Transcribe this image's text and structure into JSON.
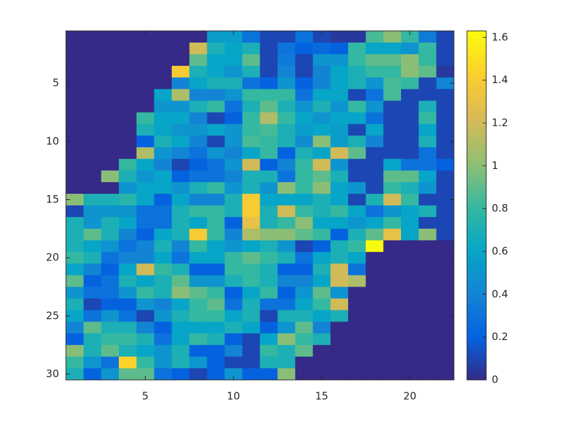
{
  "chart_data": {
    "type": "heatmap",
    "x": [
      1,
      2,
      3,
      4,
      5,
      6,
      7,
      8,
      9,
      10,
      11,
      12,
      13,
      14,
      15,
      16,
      17,
      18,
      19,
      20,
      21,
      22
    ],
    "y": [
      1,
      2,
      3,
      4,
      5,
      6,
      7,
      8,
      9,
      10,
      11,
      12,
      13,
      14,
      15,
      16,
      17,
      18,
      19,
      20,
      21,
      22,
      23,
      24,
      25,
      26,
      27,
      28,
      29,
      30
    ],
    "xlim": [
      0.5,
      22.5
    ],
    "ylim": [
      0.5,
      30.5
    ],
    "y_direction": "reverse",
    "xticks": [
      5,
      10,
      15,
      20
    ],
    "yticks": [
      5,
      10,
      15,
      20,
      25,
      30
    ],
    "clim": [
      0,
      1.63
    ],
    "cticks": [
      0,
      0.2,
      0.4,
      0.6,
      0.8,
      1,
      1.2,
      1.4,
      1.6
    ],
    "colormap": [
      "#352a87",
      "#0363e1",
      "#1485d4",
      "#06a7c6",
      "#38b99e",
      "#92bf73",
      "#d9ba56",
      "#fcce2e",
      "#f9fb0e"
    ],
    "values": [
      [
        0,
        0,
        0,
        0,
        0,
        0,
        0,
        0,
        0.55,
        0.55,
        0.3,
        0.1,
        0.1,
        0.3,
        0.1,
        0.05,
        0.05,
        0.85,
        1.0,
        0.8,
        0.35,
        0.1
      ],
      [
        0,
        0,
        0,
        0,
        0,
        0,
        0,
        1.2,
        0.7,
        0.6,
        0.7,
        0.1,
        0.3,
        0.2,
        0.25,
        0.2,
        0.8,
        0.6,
        0.6,
        0.5,
        0.8,
        0.1
      ],
      [
        0,
        0,
        0,
        0,
        0,
        0,
        0,
        0.9,
        0.6,
        0.6,
        0.9,
        0.1,
        0.35,
        0.1,
        0.5,
        0.5,
        0.8,
        0.9,
        0.9,
        1.0,
        0.8,
        0.1
      ],
      [
        0,
        0,
        0,
        0,
        0,
        0,
        1.4,
        0.7,
        0.6,
        0.5,
        0.7,
        0.1,
        0.4,
        0.1,
        0.4,
        0.6,
        0.7,
        0.8,
        0.8,
        1.0,
        0.9,
        0.05
      ],
      [
        0,
        0,
        0,
        0,
        0,
        0,
        0.4,
        0.6,
        0.7,
        0.7,
        0.3,
        0.2,
        0.5,
        0.2,
        0.4,
        0.6,
        0.7,
        0.5,
        0.85,
        0.8,
        0.1,
        0.4
      ],
      [
        0,
        0,
        0,
        0,
        0,
        0.6,
        1.1,
        0.4,
        0.4,
        0.5,
        0.8,
        0.8,
        0.8,
        0.3,
        0.6,
        0.6,
        0.1,
        0.3,
        0.85,
        0.1,
        0.1,
        0.1
      ],
      [
        0,
        0,
        0,
        0,
        0,
        0.5,
        0.5,
        0.7,
        0.8,
        0.3,
        0.7,
        0.9,
        0.7,
        0.5,
        0.7,
        0.5,
        0.8,
        0.5,
        0.1,
        0.1,
        0.7,
        0.1
      ],
      [
        0,
        0,
        0,
        0,
        0.8,
        0.6,
        0.6,
        0.4,
        0.1,
        0.2,
        0.8,
        1.1,
        0.8,
        0.6,
        0.5,
        0.6,
        0.6,
        0.3,
        0.1,
        0.1,
        0.8,
        0.1
      ],
      [
        0,
        0,
        0,
        0,
        0.7,
        0.6,
        0.5,
        0.5,
        0.6,
        0.5,
        0.8,
        0.85,
        0.7,
        0.55,
        0.6,
        0.55,
        0.1,
        0.6,
        0.1,
        0.1,
        0.6,
        0.1
      ],
      [
        0,
        0,
        0,
        0,
        0.2,
        0.7,
        0.6,
        0.4,
        0.1,
        0.5,
        0.85,
        0.8,
        0.7,
        0.45,
        1.0,
        0.55,
        0.7,
        0.4,
        0.1,
        0.1,
        0.7,
        0.1
      ],
      [
        0,
        0,
        0,
        0,
        1.1,
        0.5,
        0.4,
        0.3,
        0.5,
        0.4,
        0.6,
        0.8,
        0.2,
        0.7,
        0.6,
        1.2,
        0.9,
        0.1,
        0.1,
        0.1,
        0.3,
        0.1
      ],
      [
        0,
        0,
        0,
        0.8,
        0.6,
        0.4,
        0.1,
        0.2,
        0.3,
        0.5,
        1.2,
        0.2,
        0.4,
        0.8,
        1.2,
        0.5,
        0.1,
        0.1,
        0.6,
        0.3,
        0.3,
        0.2
      ],
      [
        0,
        0,
        1.0,
        0.7,
        0.5,
        0.6,
        0.2,
        0.3,
        0.3,
        0.4,
        0.7,
        0.7,
        0.3,
        0.8,
        0.9,
        0.7,
        0.1,
        0.1,
        0.9,
        0.9,
        0.6,
        0.1
      ],
      [
        0,
        0,
        0,
        0.5,
        0.6,
        0.6,
        0.5,
        0.7,
        0.8,
        0.5,
        0.7,
        0.5,
        1.0,
        0.8,
        1.0,
        0.6,
        0.5,
        0.1,
        0.8,
        0.7,
        0.5,
        0.1
      ],
      [
        1.0,
        0.7,
        0.7,
        0.75,
        0.6,
        0.2,
        0.6,
        0.4,
        0.4,
        0.7,
        1.4,
        0.6,
        0.6,
        0.6,
        0.7,
        0.6,
        0.1,
        0.7,
        1.2,
        0.8,
        0.1,
        0.1
      ],
      [
        0.1,
        0.5,
        0.5,
        0.5,
        0.3,
        0.3,
        0.7,
        0.8,
        0.8,
        0.7,
        1.4,
        0.7,
        1.2,
        0.8,
        0.7,
        0.8,
        0.6,
        0.3,
        0.5,
        0.6,
        0.7,
        0.1
      ],
      [
        0.7,
        0.5,
        0.7,
        0.6,
        0.3,
        0.3,
        0.7,
        0.6,
        0.8,
        0.2,
        1.3,
        0.7,
        0.8,
        1.0,
        0.6,
        0.6,
        0.5,
        0.6,
        0.8,
        0.6,
        0.1,
        0.1
      ],
      [
        0.7,
        0.9,
        0.7,
        0.4,
        0.2,
        0.6,
        0.7,
        1.4,
        0.8,
        0.4,
        1.1,
        1.0,
        1.0,
        0.9,
        0.8,
        0.2,
        0.7,
        0.9,
        1.3,
        0.6,
        1.0,
        0.1
      ],
      [
        0.7,
        0.6,
        0.5,
        0.3,
        0.4,
        0.7,
        0.4,
        0.8,
        0.6,
        0.5,
        0.6,
        0.7,
        0.5,
        0.1,
        0.2,
        0.7,
        0.8,
        1.63,
        0,
        0,
        0,
        0
      ],
      [
        0.8,
        0.7,
        0.3,
        0.4,
        0.4,
        0.6,
        0.3,
        0.6,
        0.6,
        0.8,
        0.9,
        0.8,
        0.7,
        0.3,
        0.6,
        0.7,
        0.6,
        0,
        0,
        0,
        0,
        0
      ],
      [
        0.6,
        0.4,
        0.2,
        0.6,
        1.2,
        0.8,
        0.7,
        0.2,
        0.2,
        0.8,
        0.8,
        0.7,
        0.2,
        0.2,
        0.7,
        1.2,
        0.3,
        0,
        0,
        0,
        0,
        0
      ],
      [
        0.9,
        0.2,
        0.3,
        0.7,
        0.6,
        0.7,
        0.9,
        0.5,
        0.5,
        0.7,
        0.8,
        0.7,
        0.4,
        0.4,
        0.6,
        1.2,
        1.1,
        0,
        0,
        0,
        0,
        0
      ],
      [
        0.5,
        0.3,
        0.3,
        0.5,
        0.8,
        0.7,
        1.0,
        0.9,
        0.8,
        0.2,
        0.6,
        0.8,
        0.2,
        0.5,
        0.9,
        0.5,
        0,
        0,
        0,
        0,
        0,
        0
      ],
      [
        0.7,
        0.1,
        0.2,
        0.2,
        0.5,
        0.4,
        0.6,
        0.8,
        0.9,
        0.3,
        0.7,
        0.3,
        0.3,
        0.6,
        0.8,
        1.2,
        0,
        0,
        0,
        0,
        0,
        0
      ],
      [
        0.6,
        0.3,
        0.5,
        0.3,
        0.1,
        0.5,
        0.7,
        0.8,
        0.8,
        0.6,
        0.7,
        0.1,
        0.7,
        0.7,
        0.6,
        0.7,
        0,
        0,
        0,
        0,
        0,
        0
      ],
      [
        0.4,
        0.9,
        0.7,
        0.7,
        0.4,
        0.2,
        0.6,
        0.6,
        0.6,
        0.7,
        0.6,
        0.2,
        0.5,
        0.9,
        0.4,
        0,
        0,
        0,
        0,
        0,
        0,
        0
      ],
      [
        0.2,
        0.7,
        0.8,
        0.8,
        0.7,
        0.3,
        0.6,
        0.8,
        0.7,
        0.2,
        0.1,
        0.6,
        1.0,
        0.8,
        0.7,
        0,
        0,
        0,
        0,
        0,
        0,
        0
      ],
      [
        1.0,
        0.7,
        0.9,
        0.7,
        0.6,
        0.5,
        0.7,
        0.2,
        0.2,
        0.4,
        0.1,
        0.8,
        0.7,
        0.9,
        0,
        0,
        0,
        0,
        0,
        0,
        0,
        0
      ],
      [
        0.8,
        0.5,
        0.3,
        1.45,
        0.8,
        0.5,
        0.7,
        0.5,
        0.2,
        0.1,
        0.1,
        0.7,
        0.7,
        0,
        0,
        0,
        0,
        0,
        0,
        0,
        0,
        0
      ],
      [
        0.7,
        0.2,
        0.5,
        0.9,
        0.9,
        0.3,
        0.2,
        0.1,
        0.2,
        0.5,
        0.2,
        0.2,
        1.0,
        0,
        0,
        0,
        0,
        0,
        0,
        0,
        0,
        0
      ]
    ]
  }
}
